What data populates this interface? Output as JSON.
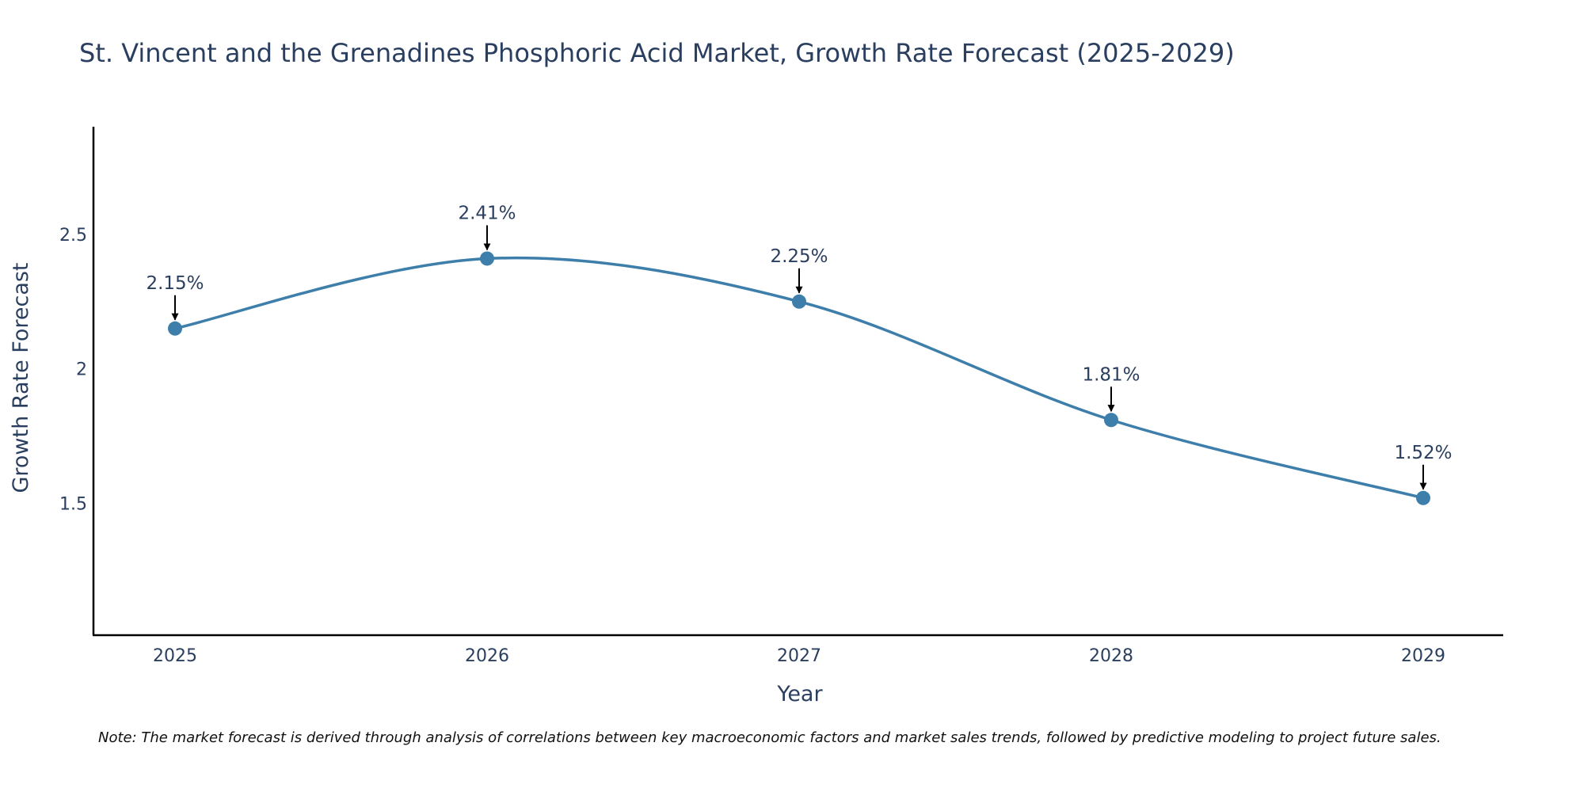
{
  "chart_data": {
    "type": "line",
    "title": "St. Vincent and the Grenadines Phosphoric Acid Market, Growth Rate Forecast (2025-2029)",
    "xlabel": "Year",
    "ylabel": "Growth Rate Forecast",
    "categories": [
      "2025",
      "2026",
      "2027",
      "2028",
      "2029"
    ],
    "values": [
      2.15,
      2.41,
      2.25,
      1.81,
      1.52
    ],
    "data_labels": [
      "2.15%",
      "2.41%",
      "2.25%",
      "1.81%",
      "1.52%"
    ],
    "ylim": [
      1.01,
      2.9
    ],
    "y_ticks": [
      1.5,
      2,
      2.5
    ],
    "y_tick_labels": [
      "1.5",
      "2",
      "2.5"
    ],
    "line_shape": "spline",
    "grid": false,
    "series_color": "#3d7eaa",
    "annotation_arrow_color": "#000000",
    "text_color": "#2a3f5f"
  },
  "note": "Note: The market forecast is derived through analysis of correlations between key macroeconomic factors and market sales trends, followed by predictive modeling to project future sales."
}
